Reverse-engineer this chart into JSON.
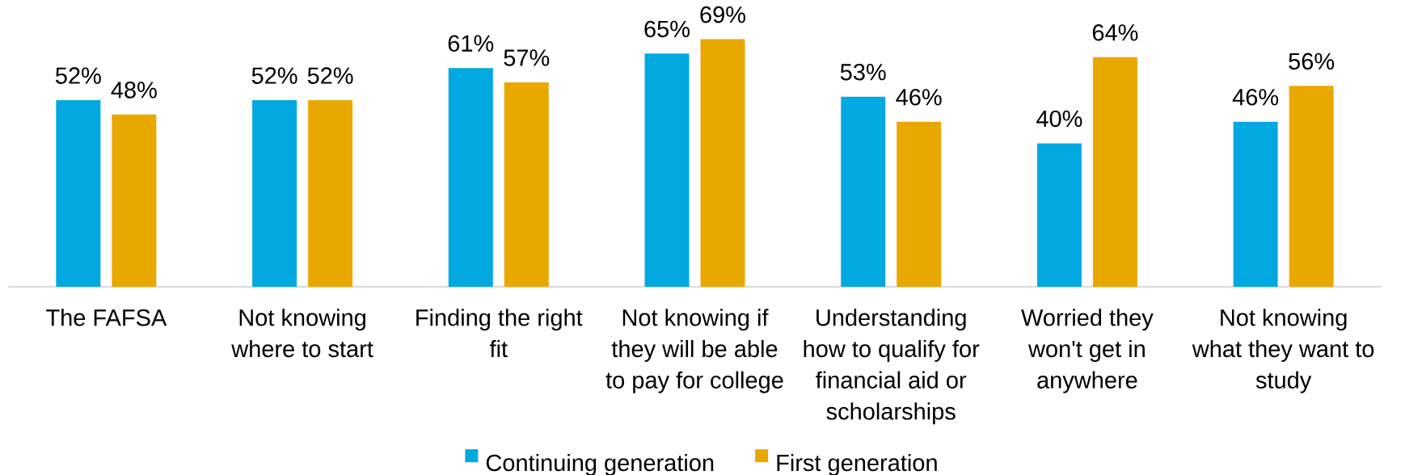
{
  "chart_data": {
    "type": "bar",
    "categories": [
      "The FAFSA",
      "Not knowing where to start",
      "Finding the right fit",
      "Not knowing if they will be able to pay for college",
      "Understanding how to qualify for financial aid or scholarships",
      "Worried they won't get in anywhere",
      "Not knowing what they want to study"
    ],
    "series": [
      {
        "name": "Continuing generation",
        "color": "#02a9e0",
        "values": [
          52,
          52,
          61,
          65,
          53,
          40,
          46
        ],
        "value_labels": [
          "52%",
          "52%",
          "61%",
          "65%",
          "53%",
          "40%",
          "46%"
        ]
      },
      {
        "name": "First generation",
        "color": "#e9a800",
        "values": [
          48,
          52,
          57,
          69,
          46,
          64,
          56
        ],
        "value_labels": [
          "48%",
          "52%",
          "57%",
          "69%",
          "46%",
          "64%",
          "56%"
        ]
      }
    ],
    "legend": "bottom"
  }
}
